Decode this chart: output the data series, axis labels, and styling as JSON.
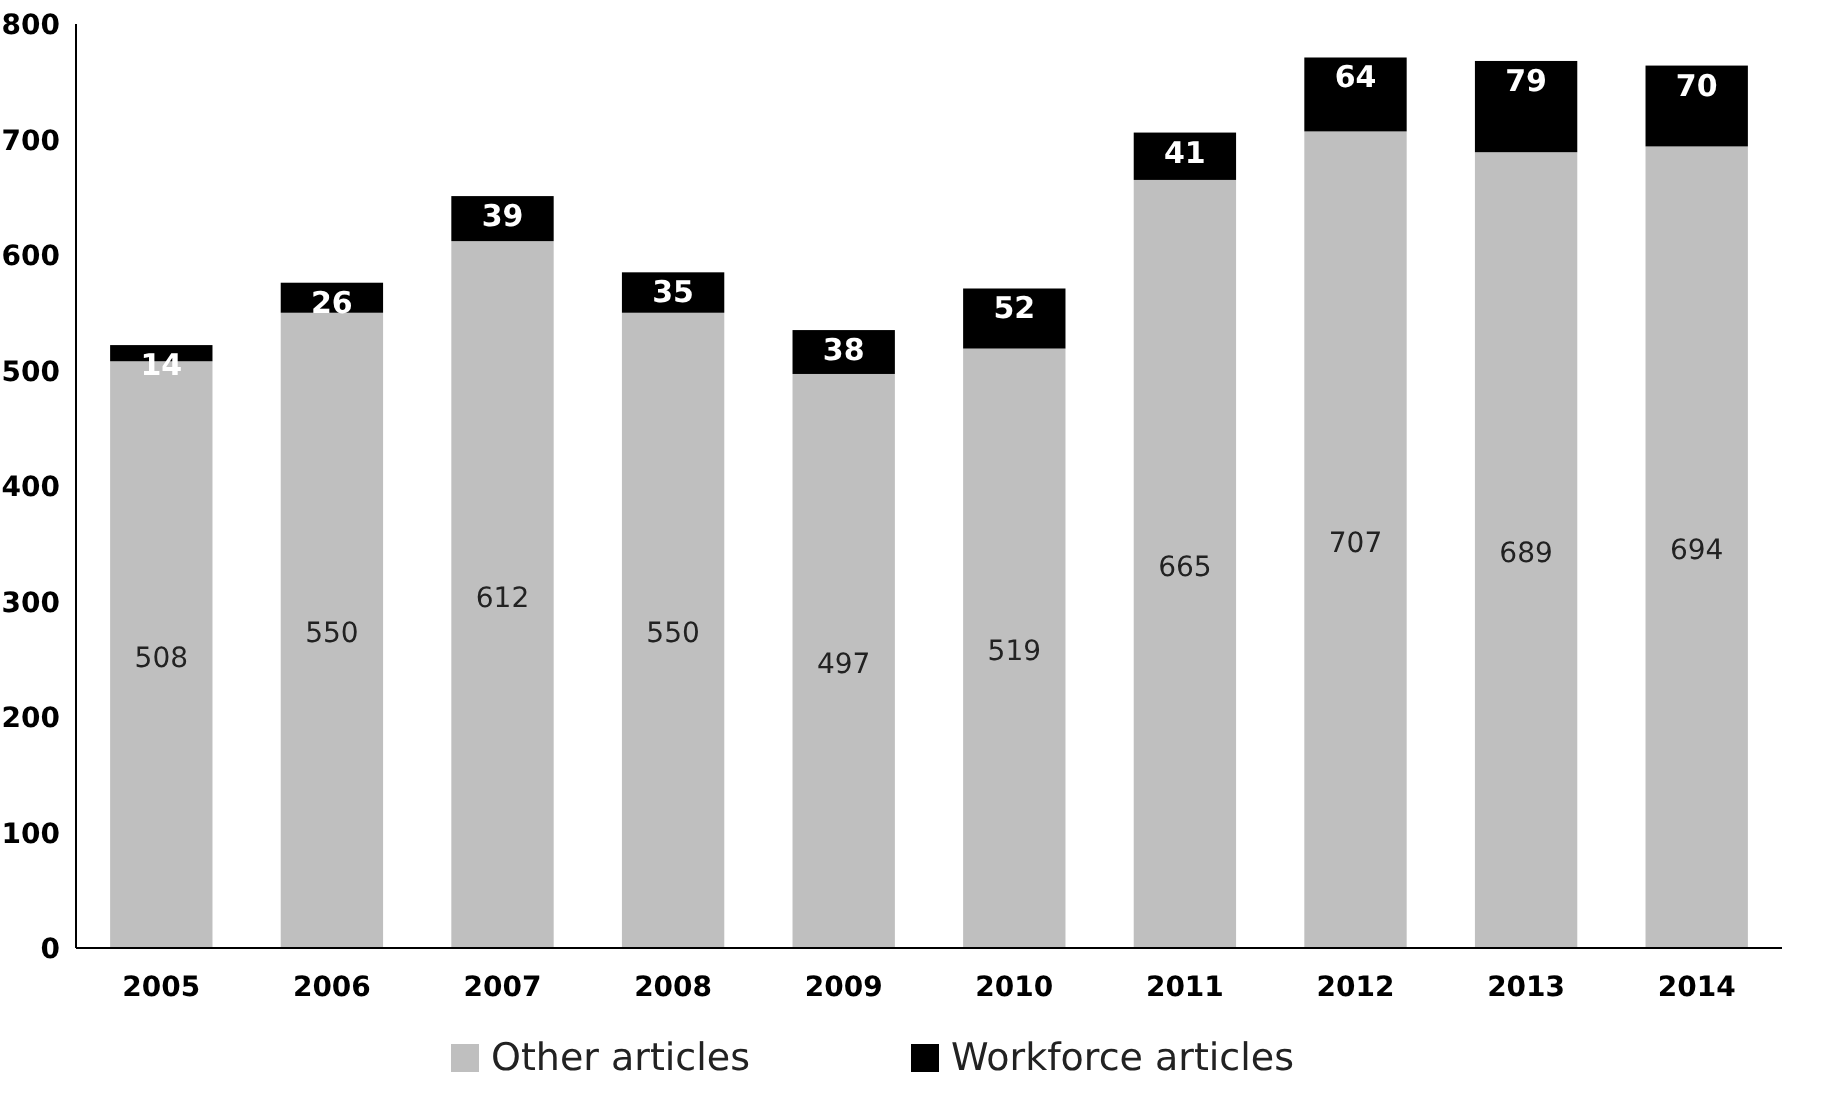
{
  "chart_data": {
    "type": "bar",
    "stacked": true,
    "categories": [
      "2005",
      "2006",
      "2007",
      "2008",
      "2009",
      "2010",
      "2011",
      "2012",
      "2013",
      "2014"
    ],
    "series": [
      {
        "name": "Other articles",
        "color": "#bfbfbf",
        "values": [
          508,
          550,
          612,
          550,
          497,
          519,
          665,
          707,
          689,
          694
        ]
      },
      {
        "name": "Workforce articles",
        "color": "#000000",
        "values": [
          14,
          26,
          39,
          35,
          38,
          52,
          41,
          64,
          79,
          70
        ]
      }
    ],
    "ylim": [
      0,
      800
    ],
    "yticks": [
      0,
      100,
      200,
      300,
      400,
      500,
      600,
      700,
      800
    ],
    "data_labels": true,
    "legend": "bottom",
    "grid": false
  }
}
